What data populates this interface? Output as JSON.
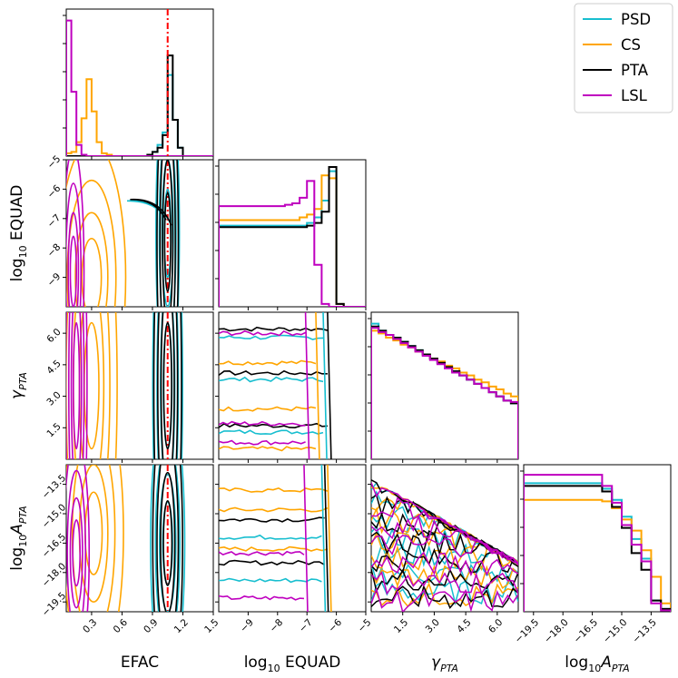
{
  "colors": {
    "PSD": "#17becf",
    "CS": "#ffa500",
    "PTA": "#000000",
    "LSL": "#bf00bf",
    "truth": "#ff0000"
  },
  "legend": {
    "location": "top-right",
    "entries": [
      "PSD",
      "CS",
      "PTA",
      "LSL"
    ]
  },
  "chart_data": {
    "type": "corner",
    "parameters": [
      {
        "key": "efac",
        "label": "EFAC",
        "range": [
          0.05,
          1.5
        ],
        "ticks": [
          0.3,
          0.6,
          0.9,
          1.2,
          1.5
        ],
        "tick_labels": [
          "0.3",
          "0.6",
          "0.9",
          "1.2",
          "1.5"
        ]
      },
      {
        "key": "equad",
        "label": "log10 EQUAD",
        "range": [
          -10,
          -5
        ],
        "ticks": [
          -9,
          -8,
          -7,
          -6,
          -5
        ],
        "tick_labels": [
          "−9",
          "−8",
          "−7",
          "−6",
          "−5"
        ]
      },
      {
        "key": "gamma",
        "label": "γPTA",
        "range": [
          0,
          7
        ],
        "ticks": [
          1.5,
          3.0,
          4.5,
          6.0
        ],
        "tick_labels": [
          "1.5",
          "3.0",
          "4.5",
          "6.0"
        ]
      },
      {
        "key": "logA",
        "label": "log10APTA",
        "range": [
          -20,
          -12.5
        ],
        "ticks": [
          -19.5,
          -18.0,
          -16.5,
          -15.0,
          -13.5
        ],
        "tick_labels": [
          "−19.5",
          "−18.0",
          "−16.5",
          "−15.0",
          "−13.5"
        ]
      }
    ],
    "axis_labels": {
      "x": [
        "EFAC",
        "log",
        "10",
        " EQUAD",
        "γ",
        "PTA",
        "log",
        "10",
        "A",
        "PTA"
      ],
      "x_items": [
        {
          "base": "EFAC",
          "sub": "",
          "suffix": ""
        },
        {
          "base": "log",
          "sub": "10",
          "suffix": " EQUAD"
        },
        {
          "base": "γ",
          "sub": "PTA",
          "suffix": ""
        },
        {
          "base": "log",
          "sub": "10",
          "suffix": "A",
          "sub2": "PTA"
        }
      ]
    },
    "axis_label_text": {
      "x0": "EFAC",
      "x1_base": "log",
      "x1_sub": "10",
      "x1_suffix": " EQUAD",
      "x2_base": "γ",
      "x2_sub": "PTA",
      "x3_base": "log",
      "x3_sub": "10",
      "x3_mid": "A",
      "x3_sub2": "PTA",
      "y1_base": "log",
      "y1_sub": "10",
      "y1_suffix": " EQUAD",
      "y2_base": "γ",
      "y2_sub": "PTA",
      "y3_base": "log",
      "y3_sub": "10",
      "y3_mid": "A",
      "y3_sub2": "PTA"
    },
    "truth": {
      "efac": 1.05
    },
    "histograms": {
      "efac": {
        "bins": [
          0.05,
          0.1,
          0.15,
          0.2,
          0.25,
          0.3,
          0.35,
          0.4,
          0.45,
          0.5,
          0.55,
          0.6,
          0.65,
          0.7,
          0.75,
          0.8,
          0.85,
          0.9,
          0.95,
          1.0,
          1.05,
          1.1,
          1.15,
          1.2,
          1.25,
          1.3,
          1.35,
          1.4,
          1.45,
          1.5
        ],
        "series": [
          {
            "name": "PSD",
            "values": [
              0,
              0,
              0,
              0,
              0,
              0,
              0,
              0,
              0,
              0,
              0,
              0,
              0,
              0,
              0,
              0,
              0.01,
              0.03,
              0.08,
              0.17,
              0.58,
              0.26,
              0.06,
              0,
              0,
              0,
              0,
              0,
              0
            ]
          },
          {
            "name": "CS",
            "values": [
              0.02,
              0.03,
              0.1,
              0.27,
              0.55,
              0.32,
              0.1,
              0.02,
              0.01,
              0,
              0,
              0,
              0,
              0,
              0,
              0,
              0,
              0,
              0,
              0,
              0,
              0,
              0,
              0,
              0,
              0,
              0,
              0,
              0
            ]
          },
          {
            "name": "PTA",
            "values": [
              0,
              0,
              0,
              0,
              0,
              0,
              0,
              0,
              0,
              0,
              0,
              0,
              0,
              0,
              0,
              0,
              0.01,
              0.03,
              0.06,
              0.15,
              0.72,
              0.26,
              0.06,
              0,
              0,
              0,
              0,
              0,
              0
            ]
          },
          {
            "name": "LSL",
            "values": [
              0.97,
              0.46,
              0.08,
              0.01,
              0,
              0,
              0,
              0,
              0,
              0,
              0,
              0,
              0,
              0,
              0,
              0,
              0,
              0,
              0,
              0,
              0,
              0,
              0,
              0,
              0,
              0,
              0,
              0,
              0
            ]
          }
        ]
      },
      "equad": {
        "bins": [
          -10,
          -9.75,
          -9.5,
          -9.25,
          -9,
          -8.75,
          -8.5,
          -8.25,
          -8,
          -7.75,
          -7.5,
          -7.25,
          -7,
          -6.75,
          -6.5,
          -6.25,
          -6,
          -5.75,
          -5.5,
          -5.25,
          -5
        ],
        "series": [
          {
            "name": "PSD",
            "values": [
              0.58,
              0.58,
              0.58,
              0.58,
              0.58,
              0.58,
              0.58,
              0.58,
              0.58,
              0.58,
              0.58,
              0.58,
              0.6,
              0.64,
              0.76,
              0.97,
              0.02,
              0,
              0,
              0
            ]
          },
          {
            "name": "CS",
            "values": [
              0.62,
              0.62,
              0.62,
              0.62,
              0.62,
              0.62,
              0.62,
              0.62,
              0.62,
              0.62,
              0.62,
              0.64,
              0.66,
              0.7,
              0.94,
              0.92,
              0.02,
              0,
              0,
              0
            ]
          },
          {
            "name": "PTA",
            "values": [
              0.57,
              0.57,
              0.57,
              0.57,
              0.57,
              0.57,
              0.57,
              0.57,
              0.57,
              0.57,
              0.57,
              0.57,
              0.58,
              0.6,
              0.68,
              1.0,
              0.02,
              0,
              0,
              0
            ]
          },
          {
            "name": "LSL",
            "values": [
              0.72,
              0.72,
              0.72,
              0.72,
              0.72,
              0.72,
              0.72,
              0.72,
              0.72,
              0.73,
              0.74,
              0.78,
              0.9,
              0.3,
              0.02,
              0,
              0,
              0,
              0,
              0
            ]
          }
        ]
      },
      "gamma": {
        "bins": [
          0,
          0.35,
          0.7,
          1.05,
          1.4,
          1.75,
          2.1,
          2.45,
          2.8,
          3.15,
          3.5,
          3.85,
          4.2,
          4.55,
          4.9,
          5.25,
          5.6,
          5.95,
          6.3,
          6.65,
          7.0
        ],
        "series": [
          {
            "name": "PSD",
            "values": [
              0.97,
              0.92,
              0.89,
              0.87,
              0.84,
              0.81,
              0.78,
              0.75,
              0.72,
              0.69,
              0.66,
              0.63,
              0.6,
              0.57,
              0.54,
              0.51,
              0.48,
              0.45,
              0.42,
              0.4
            ]
          },
          {
            "name": "CS",
            "values": [
              0.92,
              0.9,
              0.87,
              0.85,
              0.82,
              0.8,
              0.77,
              0.75,
              0.72,
              0.7,
              0.67,
              0.65,
              0.62,
              0.6,
              0.57,
              0.55,
              0.52,
              0.5,
              0.47,
              0.45
            ]
          },
          {
            "name": "PTA",
            "values": [
              0.95,
              0.92,
              0.89,
              0.87,
              0.84,
              0.81,
              0.78,
              0.75,
              0.72,
              0.69,
              0.66,
              0.63,
              0.6,
              0.57,
              0.54,
              0.51,
              0.48,
              0.45,
              0.42,
              0.4
            ]
          },
          {
            "name": "LSL",
            "values": [
              0.94,
              0.91,
              0.89,
              0.86,
              0.83,
              0.8,
              0.77,
              0.74,
              0.71,
              0.68,
              0.65,
              0.62,
              0.6,
              0.57,
              0.54,
              0.51,
              0.48,
              0.45,
              0.42,
              0.41
            ]
          }
        ]
      },
      "logA": {
        "bins": [
          -20,
          -19.5,
          -19,
          -18.5,
          -18,
          -17.5,
          -17,
          -16.5,
          -16,
          -15.5,
          -15,
          -14.5,
          -14,
          -13.5,
          -13,
          -12.5
        ],
        "series": [
          {
            "name": "PSD",
            "values": [
              0.92,
              0.92,
              0.92,
              0.92,
              0.92,
              0.92,
              0.92,
              0.92,
              0.88,
              0.8,
              0.68,
              0.52,
              0.38,
              0.08,
              0.02
            ]
          },
          {
            "name": "CS",
            "values": [
              0.8,
              0.8,
              0.8,
              0.8,
              0.8,
              0.8,
              0.8,
              0.8,
              0.79,
              0.74,
              0.66,
              0.58,
              0.44,
              0.25,
              0.06
            ]
          },
          {
            "name": "PTA",
            "values": [
              0.9,
              0.9,
              0.9,
              0.9,
              0.9,
              0.9,
              0.9,
              0.9,
              0.86,
              0.75,
              0.6,
              0.42,
              0.3,
              0.08,
              0.02
            ]
          },
          {
            "name": "LSL",
            "values": [
              0.98,
              0.98,
              0.98,
              0.98,
              0.98,
              0.98,
              0.98,
              0.98,
              0.9,
              0.78,
              0.62,
              0.48,
              0.36,
              0.06,
              0.01
            ]
          }
        ]
      }
    },
    "contours": [
      {
        "row": 1,
        "col": 0,
        "series": [
          {
            "name": "PSD",
            "center": [
              1.05,
              -7.5
            ],
            "sd": [
              0.055,
              2.5
            ],
            "tail": [
              0.65,
              -6.4
            ]
          },
          {
            "name": "CS",
            "center": [
              0.3,
              -9.0
            ],
            "sd": [
              0.16,
              2.2
            ]
          },
          {
            "name": "PTA",
            "center": [
              1.05,
              -7.8
            ],
            "sd": [
              0.05,
              2.8
            ],
            "tail": [
              0.68,
              -6.35
            ]
          },
          {
            "name": "LSL",
            "center": [
              0.12,
              -8.8
            ],
            "sd": [
              0.05,
              2.0
            ]
          }
        ]
      },
      {
        "row": 2,
        "col": 0,
        "series": [
          {
            "name": "PSD",
            "center": [
              1.05,
              3.5
            ],
            "sd": [
              0.07,
              5
            ]
          },
          {
            "name": "CS",
            "center": [
              0.3,
              3.5
            ],
            "sd": [
              0.12,
              5
            ]
          },
          {
            "name": "PTA",
            "center": [
              1.05,
              3.5
            ],
            "sd": [
              0.065,
              5
            ]
          },
          {
            "name": "LSL",
            "center": [
              0.15,
              3.5
            ],
            "sd": [
              0.05,
              5
            ]
          }
        ]
      },
      {
        "row": 3,
        "col": 0,
        "series": [
          {
            "name": "PSD",
            "center": [
              1.05,
              -16.5
            ],
            "sd": [
              0.08,
              3.5
            ]
          },
          {
            "name": "CS",
            "center": [
              0.32,
              -16.0
            ],
            "sd": [
              0.14,
              3.5
            ]
          },
          {
            "name": "PTA",
            "center": [
              1.05,
              -16.5
            ],
            "sd": [
              0.07,
              3.6
            ]
          },
          {
            "name": "LSL",
            "center": [
              0.15,
              -17.0
            ],
            "sd": [
              0.06,
              2.8
            ]
          }
        ]
      }
    ]
  }
}
